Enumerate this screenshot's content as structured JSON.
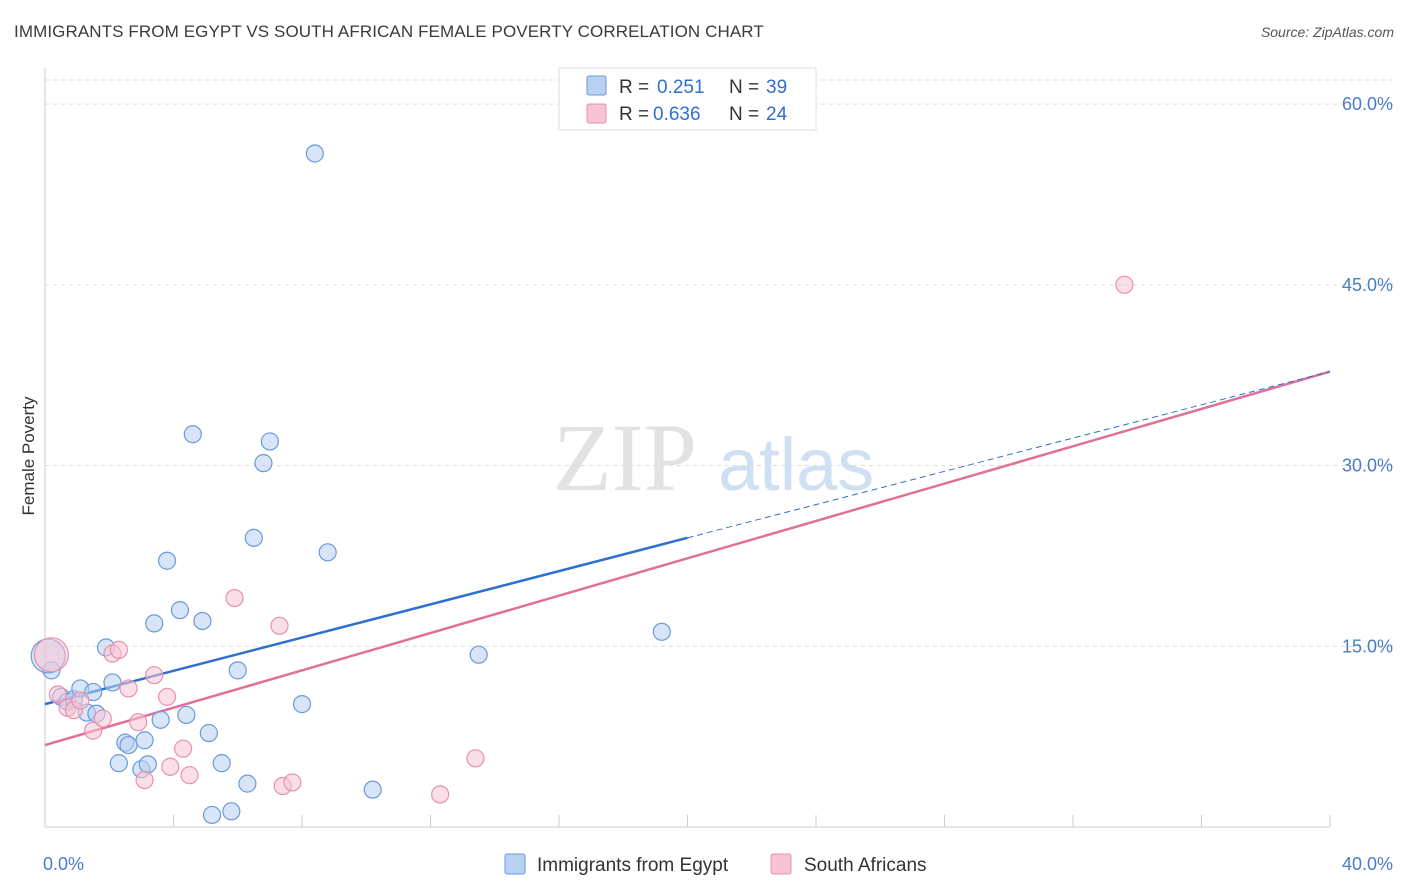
{
  "title": "IMMIGRANTS FROM EGYPT VS SOUTH AFRICAN FEMALE POVERTY CORRELATION CHART",
  "source": "Source: ZipAtlas.com",
  "watermark": {
    "zip": "ZIP",
    "atlas": "atlas"
  },
  "legend_top": {
    "rows": [
      {
        "r_label": "R =",
        "r_value": "0.251",
        "n_label": "N =",
        "n_value": "39"
      },
      {
        "r_label": "R =",
        "r_value": "0.636",
        "n_label": "N =",
        "n_value": "24"
      }
    ]
  },
  "legend_bottom": {
    "items": [
      {
        "label": "Immigrants from Egypt"
      },
      {
        "label": "South Africans"
      }
    ]
  },
  "chart_data": {
    "type": "scatter",
    "title": "IMMIGRANTS FROM EGYPT VS SOUTH AFRICAN FEMALE POVERTY CORRELATION CHART",
    "xlabel": "",
    "ylabel": "Female Poverty",
    "xlim": [
      0,
      40
    ],
    "ylim": [
      0,
      62
    ],
    "x_tick_labels": [
      "0.0%",
      "40.0%"
    ],
    "y_ticks": [
      15,
      30,
      45,
      60
    ],
    "y_tick_labels": [
      "15.0%",
      "30.0%",
      "45.0%",
      "60.0%"
    ],
    "grid": true,
    "legend_position": "top-center",
    "colors": {
      "series1_fill": "#b8d0f2",
      "series1_stroke": "#6a9ad8",
      "series1_line": "#2f6fcf",
      "series2_fill": "#f8c4d4",
      "series2_stroke": "#e890ae",
      "series2_line": "#e07099"
    },
    "series": [
      {
        "name": "Immigrants from Egypt",
        "points": [
          [
            0.2,
            13.0
          ],
          [
            0.5,
            10.8
          ],
          [
            0.7,
            10.4
          ],
          [
            0.9,
            10.6
          ],
          [
            1.1,
            11.5
          ],
          [
            1.3,
            9.5
          ],
          [
            1.5,
            11.2
          ],
          [
            1.6,
            9.4
          ],
          [
            1.9,
            14.9
          ],
          [
            2.1,
            12.0
          ],
          [
            2.3,
            5.3
          ],
          [
            2.5,
            7.0
          ],
          [
            2.6,
            6.8
          ],
          [
            3.0,
            4.8
          ],
          [
            3.1,
            7.2
          ],
          [
            3.2,
            5.2
          ],
          [
            3.4,
            16.9
          ],
          [
            3.6,
            8.9
          ],
          [
            3.8,
            22.1
          ],
          [
            4.2,
            18.0
          ],
          [
            4.4,
            9.3
          ],
          [
            4.6,
            32.6
          ],
          [
            4.9,
            17.1
          ],
          [
            5.1,
            7.8
          ],
          [
            5.2,
            1.0
          ],
          [
            5.5,
            5.3
          ],
          [
            5.8,
            1.3
          ],
          [
            6.0,
            13.0
          ],
          [
            6.3,
            3.6
          ],
          [
            6.5,
            24.0
          ],
          [
            6.8,
            30.2
          ],
          [
            7.0,
            32.0
          ],
          [
            8.0,
            10.2
          ],
          [
            8.4,
            55.9
          ],
          [
            8.8,
            22.8
          ],
          [
            10.2,
            3.1
          ],
          [
            13.5,
            14.3
          ],
          [
            19.2,
            16.2
          ],
          [
            0.1,
            14.2
          ]
        ],
        "trend": {
          "x": [
            0,
            20
          ],
          "y": [
            10.2,
            24.0
          ]
        },
        "trend_extension": {
          "x": [
            20,
            40
          ],
          "y": [
            24.0,
            37.8
          ]
        }
      },
      {
        "name": "South Africans",
        "points": [
          [
            0.4,
            11.0
          ],
          [
            0.7,
            9.9
          ],
          [
            0.9,
            9.7
          ],
          [
            1.1,
            10.5
          ],
          [
            1.5,
            8.0
          ],
          [
            1.8,
            9.0
          ],
          [
            2.1,
            14.4
          ],
          [
            2.3,
            14.7
          ],
          [
            2.6,
            11.5
          ],
          [
            2.9,
            8.7
          ],
          [
            3.1,
            3.9
          ],
          [
            3.4,
            12.6
          ],
          [
            3.8,
            10.8
          ],
          [
            3.9,
            5.0
          ],
          [
            4.3,
            6.5
          ],
          [
            4.5,
            4.3
          ],
          [
            5.9,
            19.0
          ],
          [
            7.3,
            16.7
          ],
          [
            7.4,
            3.4
          ],
          [
            7.7,
            3.7
          ],
          [
            12.3,
            2.7
          ],
          [
            13.4,
            5.7
          ],
          [
            33.6,
            45.0
          ],
          [
            0.2,
            14.3
          ]
        ],
        "trend": {
          "x": [
            0,
            40
          ],
          "y": [
            6.8,
            37.8
          ]
        }
      }
    ]
  }
}
